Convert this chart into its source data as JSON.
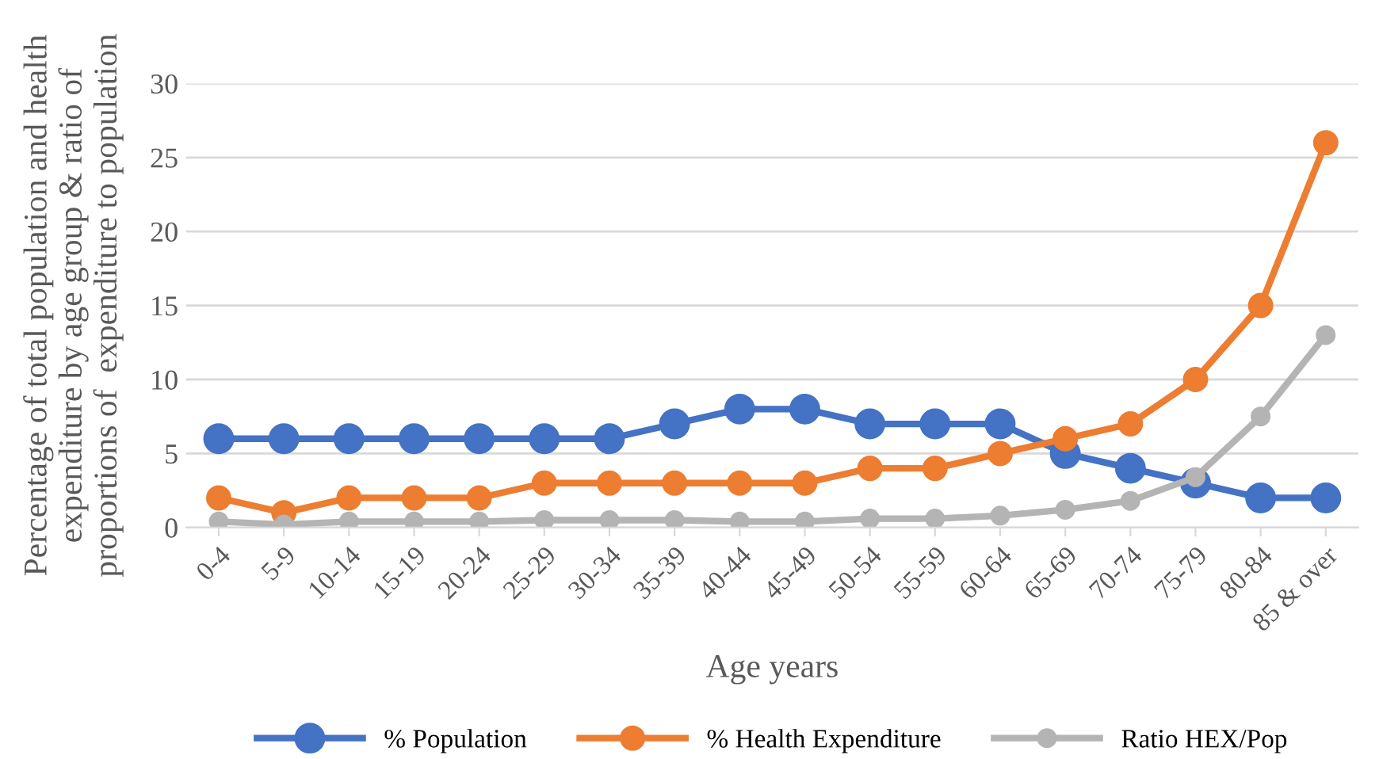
{
  "chart_data": {
    "type": "line",
    "xlabel": "Age years",
    "ylabel": "Percentage of total population and health expenditure by age group & ratio of proportions of  expenditure to population",
    "categories": [
      "0-4",
      "5-9",
      "10-14",
      "15-19",
      "20-24",
      "25-29",
      "30-34",
      "35-39",
      "40-44",
      "45-49",
      "50-54",
      "55-59",
      "60-64",
      "65-69",
      "70-74",
      "75-79",
      "80-84",
      "85 & over"
    ],
    "series": [
      {
        "name": "% Population",
        "color": "#4472c4",
        "values": [
          6,
          6,
          6,
          6,
          6,
          6,
          6,
          7,
          8,
          8,
          7,
          7,
          7,
          5,
          4,
          3,
          2,
          2
        ]
      },
      {
        "name": "% Health Expenditure",
        "color": "#ed7d31",
        "values": [
          2,
          1,
          2,
          2,
          2,
          3,
          3,
          3,
          3,
          3,
          4,
          4,
          5,
          6,
          7,
          10,
          15,
          26
        ]
      },
      {
        "name": "Ratio HEX/Pop",
        "color": "#b4b4b4",
        "values": [
          0.4,
          0.2,
          0.4,
          0.4,
          0.4,
          0.5,
          0.5,
          0.5,
          0.4,
          0.4,
          0.6,
          0.6,
          0.8,
          1.2,
          1.8,
          3.4,
          7.5,
          13
        ]
      }
    ],
    "ylim": [
      0,
      30
    ],
    "yticks": [
      0,
      5,
      10,
      15,
      20,
      25,
      30
    ],
    "grid": "y",
    "legend": "bottom",
    "marker": "circle",
    "line_style": "solid"
  }
}
